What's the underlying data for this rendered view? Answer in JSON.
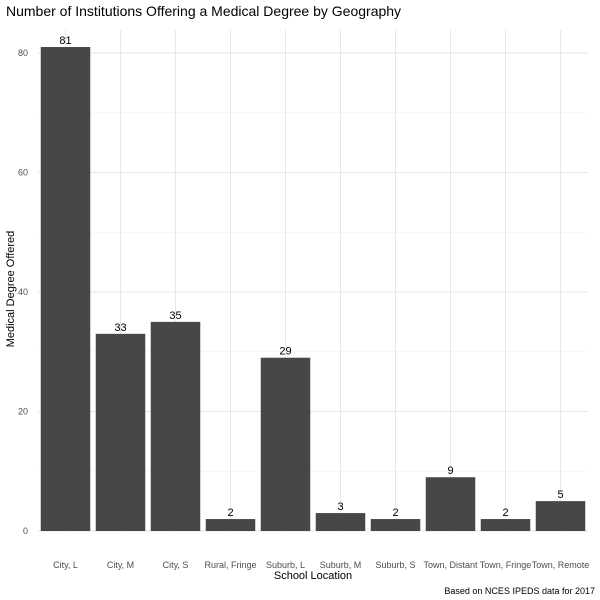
{
  "chart_data": {
    "type": "bar",
    "title": "Number of Institutions Offering a Medical Degree by Geography",
    "xlabel": "School Location",
    "ylabel": "Medical Degree Offered",
    "caption": "Based on NCES IPEDS data for 2017",
    "categories": [
      "City, L",
      "City, M",
      "City, S",
      "Rural, Fringe",
      "Suburb, L",
      "Suburb, M",
      "Suburb, S",
      "Town, Distant",
      "Town, Fringe",
      "Town, Remote"
    ],
    "values": [
      81,
      33,
      35,
      2,
      29,
      3,
      2,
      9,
      2,
      5
    ],
    "ylim": [
      0,
      85
    ],
    "yticks": [
      0,
      20,
      40,
      60,
      80
    ],
    "grid": true,
    "legend": "none",
    "bar_color": "#474747"
  }
}
